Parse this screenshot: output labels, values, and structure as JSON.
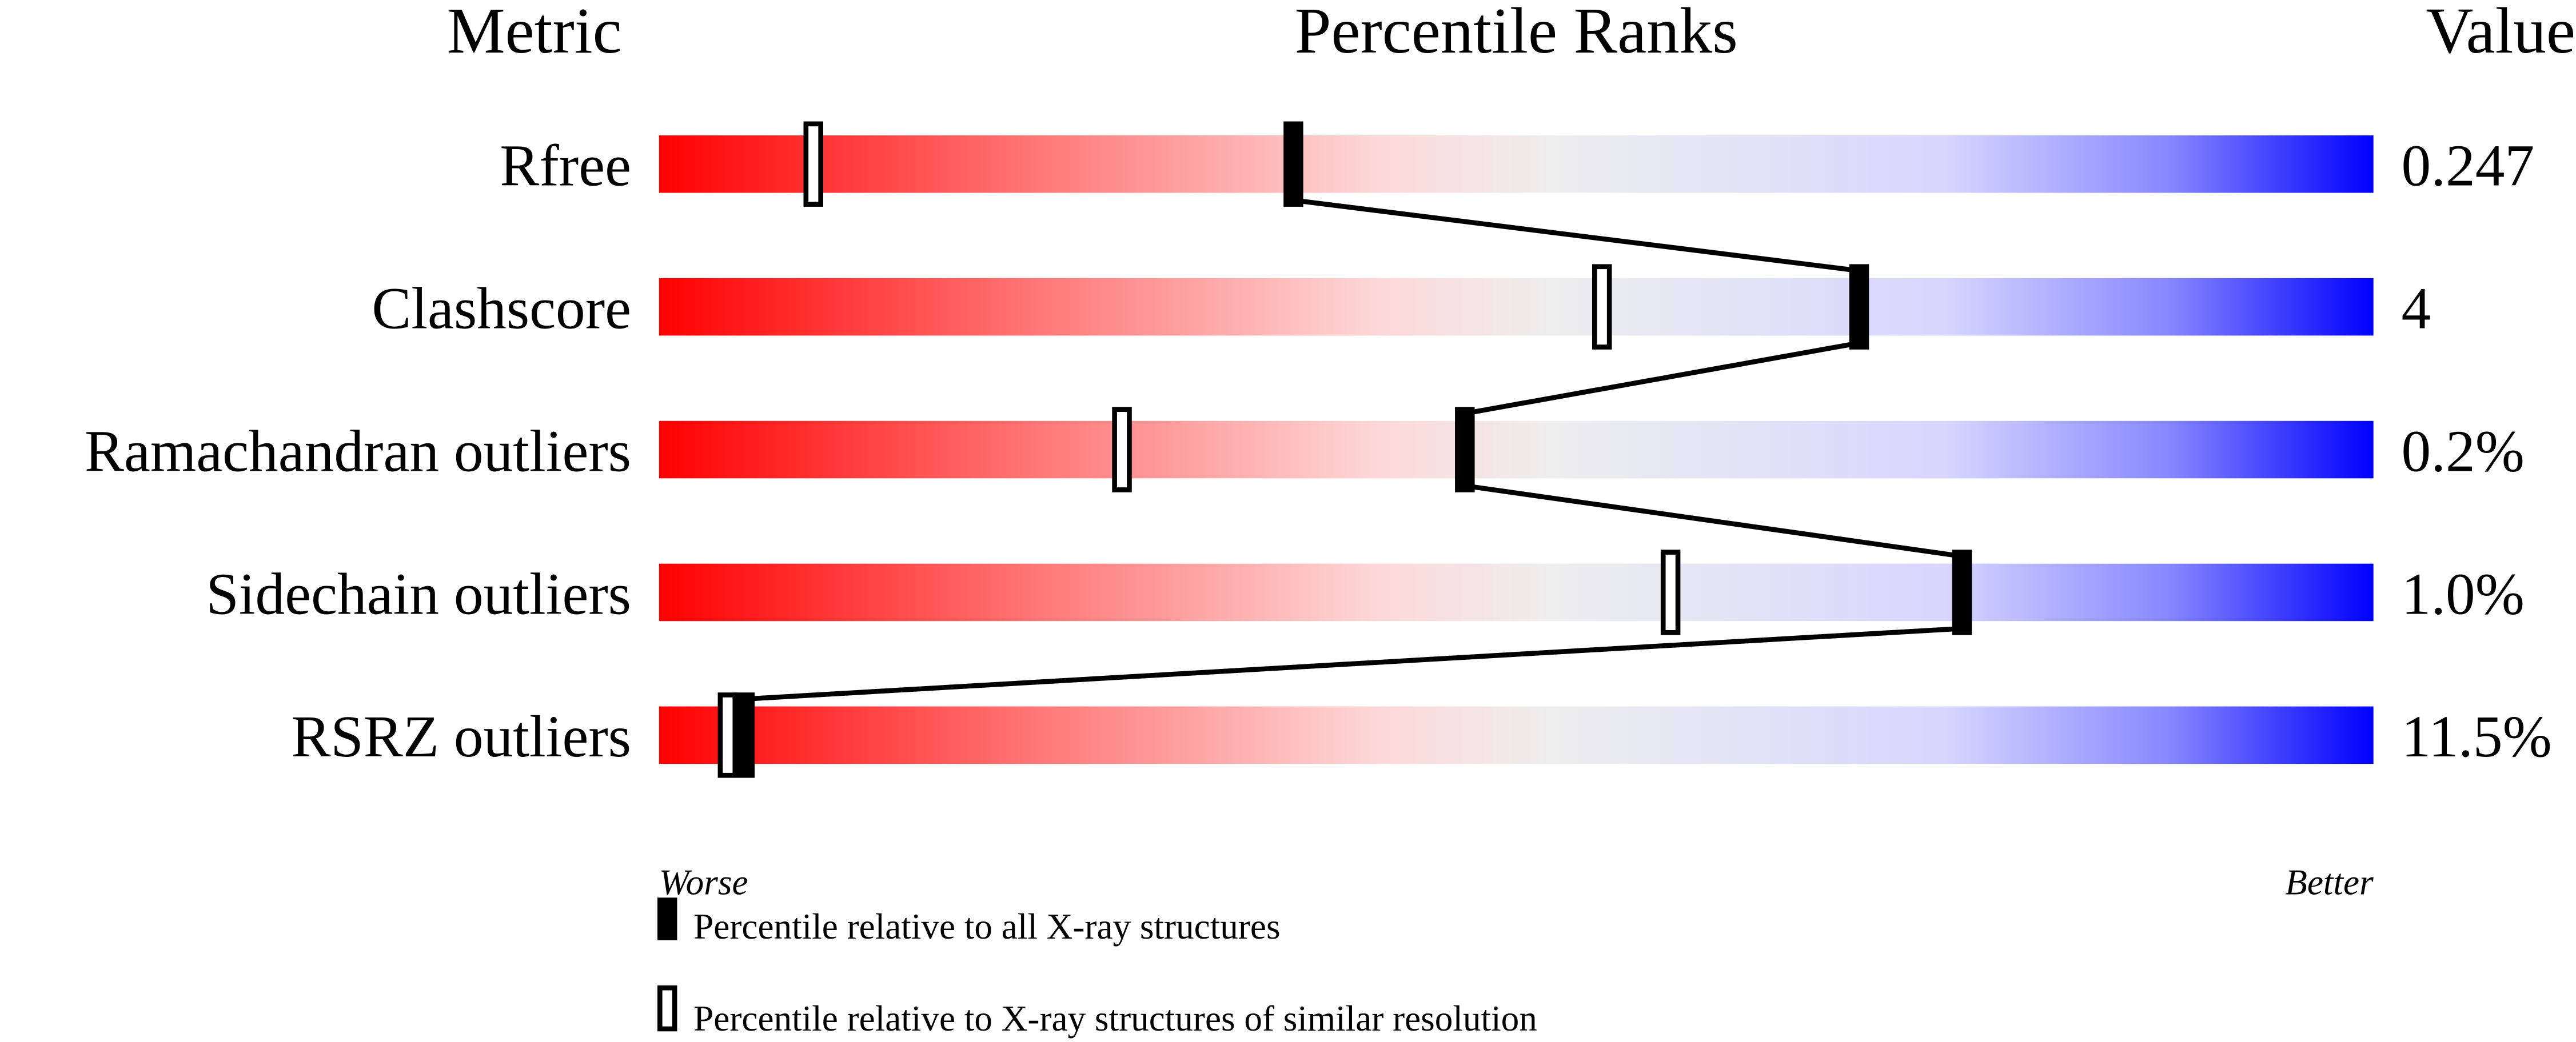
{
  "chart_data": {
    "type": "percentile-slider",
    "headers": {
      "metric": "Metric",
      "ranks": "Percentile Ranks",
      "value": "Value"
    },
    "xlim": [
      0,
      100
    ],
    "rows": [
      {
        "metric": "Rfree",
        "value": "0.247",
        "percentile_all": 37,
        "percentile_similar": 9
      },
      {
        "metric": "Clashscore",
        "value": "4",
        "percentile_all": 70,
        "percentile_similar": 55
      },
      {
        "metric": "Ramachandran outliers",
        "value": "0.2%",
        "percentile_all": 47,
        "percentile_similar": 27
      },
      {
        "metric": "Sidechain outliers",
        "value": "1.0%",
        "percentile_all": 76,
        "percentile_similar": 59
      },
      {
        "metric": "RSRZ outliers",
        "value": "11.5%",
        "percentile_all": 5,
        "percentile_similar": 4
      }
    ],
    "axis_labels": {
      "left": "Worse",
      "right": "Better"
    },
    "legend": {
      "filled": "Percentile relative to all X-ray structures",
      "open": "Percentile relative to X-ray structures of similar resolution"
    },
    "colors": {
      "worse": "#ff0000",
      "mid": "#eeeeee",
      "better": "#0000ff"
    }
  }
}
